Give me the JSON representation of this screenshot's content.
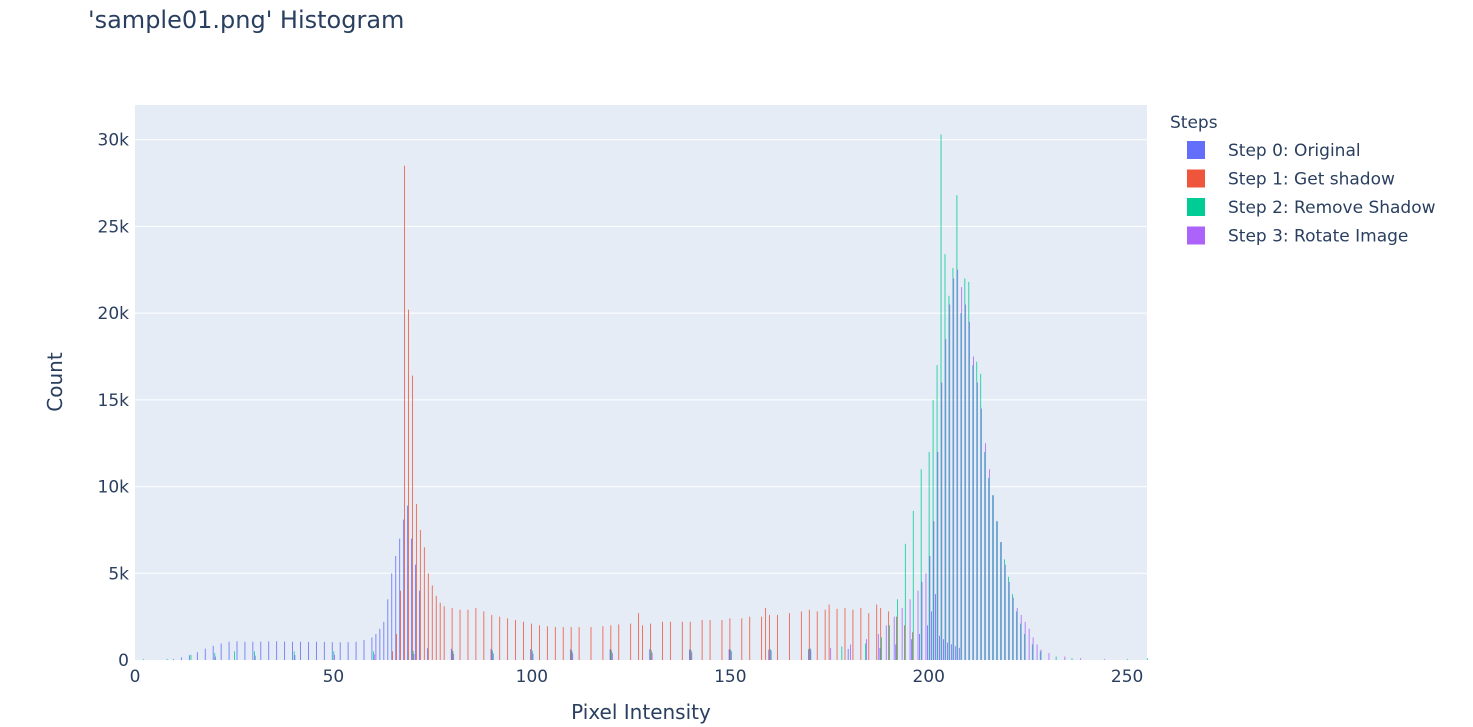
{
  "chart_data": {
    "type": "bar",
    "title": "'sample01.png' Histogram",
    "xlabel": "Pixel Intensity",
    "ylabel": "Count",
    "xlim": [
      0,
      255
    ],
    "ylim": [
      0,
      32000
    ],
    "x_ticks": [
      0,
      50,
      100,
      150,
      200,
      250
    ],
    "x_tick_labels": [
      "0",
      "50",
      "100",
      "150",
      "200",
      "250"
    ],
    "y_ticks": [
      0,
      5000,
      10000,
      15000,
      20000,
      25000,
      30000
    ],
    "y_tick_labels": [
      "0",
      "5k",
      "10k",
      "15k",
      "20k",
      "25k",
      "30k"
    ],
    "grid": true,
    "legend": {
      "title": "Steps",
      "placement": "right"
    },
    "series": [
      {
        "name": "Step 0: Original",
        "color": "#636efa",
        "points": [
          [
            10,
            50
          ],
          [
            12,
            150
          ],
          [
            14,
            280
          ],
          [
            16,
            450
          ],
          [
            18,
            650
          ],
          [
            20,
            820
          ],
          [
            22,
            950
          ],
          [
            24,
            1050
          ],
          [
            26,
            1080
          ],
          [
            28,
            1050
          ],
          [
            30,
            1050
          ],
          [
            32,
            1060
          ],
          [
            34,
            1070
          ],
          [
            36,
            1080
          ],
          [
            38,
            1060
          ],
          [
            40,
            1050
          ],
          [
            42,
            1050
          ],
          [
            44,
            1040
          ],
          [
            46,
            1050
          ],
          [
            48,
            1040
          ],
          [
            50,
            1030
          ],
          [
            52,
            1020
          ],
          [
            54,
            1030
          ],
          [
            56,
            1050
          ],
          [
            58,
            1150
          ],
          [
            60,
            1300
          ],
          [
            61,
            1500
          ],
          [
            62,
            1800
          ],
          [
            63,
            2200
          ],
          [
            64,
            3500
          ],
          [
            65,
            5000
          ],
          [
            66,
            6000
          ],
          [
            67,
            7000
          ],
          [
            68,
            8100
          ],
          [
            69,
            8900
          ],
          [
            70,
            7000
          ],
          [
            71,
            5500
          ],
          [
            72,
            4000
          ],
          [
            74,
            680
          ],
          [
            80,
            650
          ],
          [
            90,
            640
          ],
          [
            100,
            630
          ],
          [
            110,
            620
          ],
          [
            120,
            620
          ],
          [
            130,
            620
          ],
          [
            140,
            610
          ],
          [
            150,
            610
          ],
          [
            160,
            600
          ],
          [
            170,
            620
          ],
          [
            180,
            640
          ],
          [
            188,
            700
          ],
          [
            192,
            900
          ],
          [
            196,
            1200
          ],
          [
            198,
            1500
          ],
          [
            200,
            2000
          ],
          [
            201,
            2800
          ],
          [
            202,
            3800
          ],
          [
            203,
            1400
          ],
          [
            204,
            1200
          ],
          [
            205,
            1000
          ],
          [
            206,
            900
          ],
          [
            207,
            800
          ],
          [
            208,
            700
          ]
        ]
      },
      {
        "name": "Step 1: Get shadow",
        "color": "#ef553b",
        "points": [
          [
            65,
            500
          ],
          [
            66,
            1500
          ],
          [
            67,
            4000
          ],
          [
            68,
            28500
          ],
          [
            69,
            20200
          ],
          [
            70,
            16400
          ],
          [
            71,
            9000
          ],
          [
            72,
            7500
          ],
          [
            73,
            6500
          ],
          [
            74,
            5000
          ],
          [
            75,
            4300
          ],
          [
            76,
            3700
          ],
          [
            77,
            3300
          ],
          [
            78,
            3100
          ],
          [
            80,
            3000
          ],
          [
            82,
            2900
          ],
          [
            84,
            2900
          ],
          [
            86,
            3000
          ],
          [
            88,
            2800
          ],
          [
            90,
            2600
          ],
          [
            92,
            2500
          ],
          [
            94,
            2400
          ],
          [
            96,
            2300
          ],
          [
            98,
            2200
          ],
          [
            100,
            2100
          ],
          [
            102,
            2000
          ],
          [
            104,
            1950
          ],
          [
            106,
            1900
          ],
          [
            108,
            1900
          ],
          [
            110,
            1900
          ],
          [
            112,
            1900
          ],
          [
            115,
            1900
          ],
          [
            118,
            1950
          ],
          [
            120,
            2000
          ],
          [
            122,
            2050
          ],
          [
            125,
            2100
          ],
          [
            127,
            2700
          ],
          [
            128,
            2000
          ],
          [
            130,
            2100
          ],
          [
            133,
            2200
          ],
          [
            135,
            2200
          ],
          [
            138,
            2200
          ],
          [
            140,
            2200
          ],
          [
            143,
            2300
          ],
          [
            145,
            2300
          ],
          [
            148,
            2300
          ],
          [
            150,
            2400
          ],
          [
            153,
            2400
          ],
          [
            155,
            2500
          ],
          [
            158,
            2500
          ],
          [
            159,
            3000
          ],
          [
            160,
            2600
          ],
          [
            162,
            2600
          ],
          [
            165,
            2700
          ],
          [
            168,
            2800
          ],
          [
            170,
            2900
          ],
          [
            172,
            2800
          ],
          [
            174,
            2900
          ],
          [
            175,
            3200
          ],
          [
            177,
            2950
          ],
          [
            179,
            3000
          ],
          [
            181,
            2900
          ],
          [
            183,
            3000
          ],
          [
            185,
            2700
          ],
          [
            187,
            3200
          ],
          [
            188,
            3000
          ],
          [
            190,
            2800
          ],
          [
            192,
            2500
          ],
          [
            194,
            2000
          ],
          [
            196,
            1600
          ]
        ]
      },
      {
        "name": "Step 2: Remove Shadow",
        "color": "#00cc96",
        "points": [
          [
            2,
            50
          ],
          [
            8,
            60
          ],
          [
            14,
            300
          ],
          [
            20,
            400
          ],
          [
            25,
            500
          ],
          [
            30,
            500
          ],
          [
            40,
            500
          ],
          [
            50,
            500
          ],
          [
            60,
            500
          ],
          [
            70,
            520
          ],
          [
            80,
            520
          ],
          [
            90,
            530
          ],
          [
            100,
            540
          ],
          [
            110,
            540
          ],
          [
            120,
            550
          ],
          [
            130,
            560
          ],
          [
            140,
            580
          ],
          [
            150,
            600
          ],
          [
            160,
            620
          ],
          [
            170,
            680
          ],
          [
            178,
            780
          ],
          [
            184,
            950
          ],
          [
            188,
            1300
          ],
          [
            190,
            2000
          ],
          [
            192,
            3500
          ],
          [
            194,
            6700
          ],
          [
            196,
            8600
          ],
          [
            198,
            11000
          ],
          [
            200,
            12000
          ],
          [
            201,
            15000
          ],
          [
            202,
            17000
          ],
          [
            203,
            30300
          ],
          [
            204,
            23400
          ],
          [
            205,
            21000
          ],
          [
            206,
            22600
          ],
          [
            207,
            26800
          ],
          [
            208,
            20000
          ],
          [
            209,
            22000
          ],
          [
            210,
            21800
          ],
          [
            211,
            17000
          ],
          [
            212,
            17200
          ],
          [
            213,
            16500
          ],
          [
            214,
            12000
          ],
          [
            215,
            10500
          ],
          [
            216,
            9500
          ],
          [
            217,
            8000
          ],
          [
            218,
            6800
          ],
          [
            219,
            5800
          ],
          [
            220,
            4800
          ],
          [
            221,
            3800
          ],
          [
            222,
            2800
          ],
          [
            223,
            2100
          ],
          [
            224,
            1500
          ],
          [
            226,
            900
          ],
          [
            228,
            500
          ],
          [
            232,
            200
          ],
          [
            236,
            100
          ],
          [
            250,
            50
          ],
          [
            255,
            100
          ]
        ]
      },
      {
        "name": "Step 3: Rotate Image",
        "color": "#ab63fa",
        "points": [
          [
            20,
            200
          ],
          [
            30,
            250
          ],
          [
            40,
            280
          ],
          [
            50,
            300
          ],
          [
            60,
            330
          ],
          [
            70,
            350
          ],
          [
            80,
            360
          ],
          [
            90,
            370
          ],
          [
            100,
            380
          ],
          [
            110,
            390
          ],
          [
            120,
            400
          ],
          [
            130,
            420
          ],
          [
            140,
            450
          ],
          [
            150,
            500
          ],
          [
            160,
            550
          ],
          [
            170,
            600
          ],
          [
            175,
            700
          ],
          [
            180,
            900
          ],
          [
            184,
            1200
          ],
          [
            187,
            1500
          ],
          [
            189,
            2000
          ],
          [
            191,
            2500
          ],
          [
            193,
            3000
          ],
          [
            195,
            3500
          ],
          [
            197,
            4000
          ],
          [
            198,
            4500
          ],
          [
            199,
            5000
          ],
          [
            200,
            6000
          ],
          [
            201,
            8000
          ],
          [
            202,
            12000
          ],
          [
            203,
            16000
          ],
          [
            204,
            18500
          ],
          [
            205,
            20500
          ],
          [
            206,
            22000
          ],
          [
            207,
            22500
          ],
          [
            208,
            21500
          ],
          [
            209,
            20500
          ],
          [
            210,
            19500
          ],
          [
            211,
            17500
          ],
          [
            212,
            16000
          ],
          [
            213,
            14500
          ],
          [
            214,
            12500
          ],
          [
            215,
            11000
          ],
          [
            216,
            9500
          ],
          [
            217,
            8000
          ],
          [
            218,
            6800
          ],
          [
            219,
            5500
          ],
          [
            220,
            4500
          ],
          [
            221,
            3600
          ],
          [
            222,
            3000
          ],
          [
            223,
            2600
          ],
          [
            224,
            2200
          ],
          [
            225,
            1800
          ],
          [
            226,
            1300
          ],
          [
            227,
            900
          ],
          [
            228,
            600
          ],
          [
            230,
            400
          ],
          [
            234,
            200
          ],
          [
            238,
            100
          ],
          [
            244,
            50
          ]
        ]
      }
    ]
  }
}
